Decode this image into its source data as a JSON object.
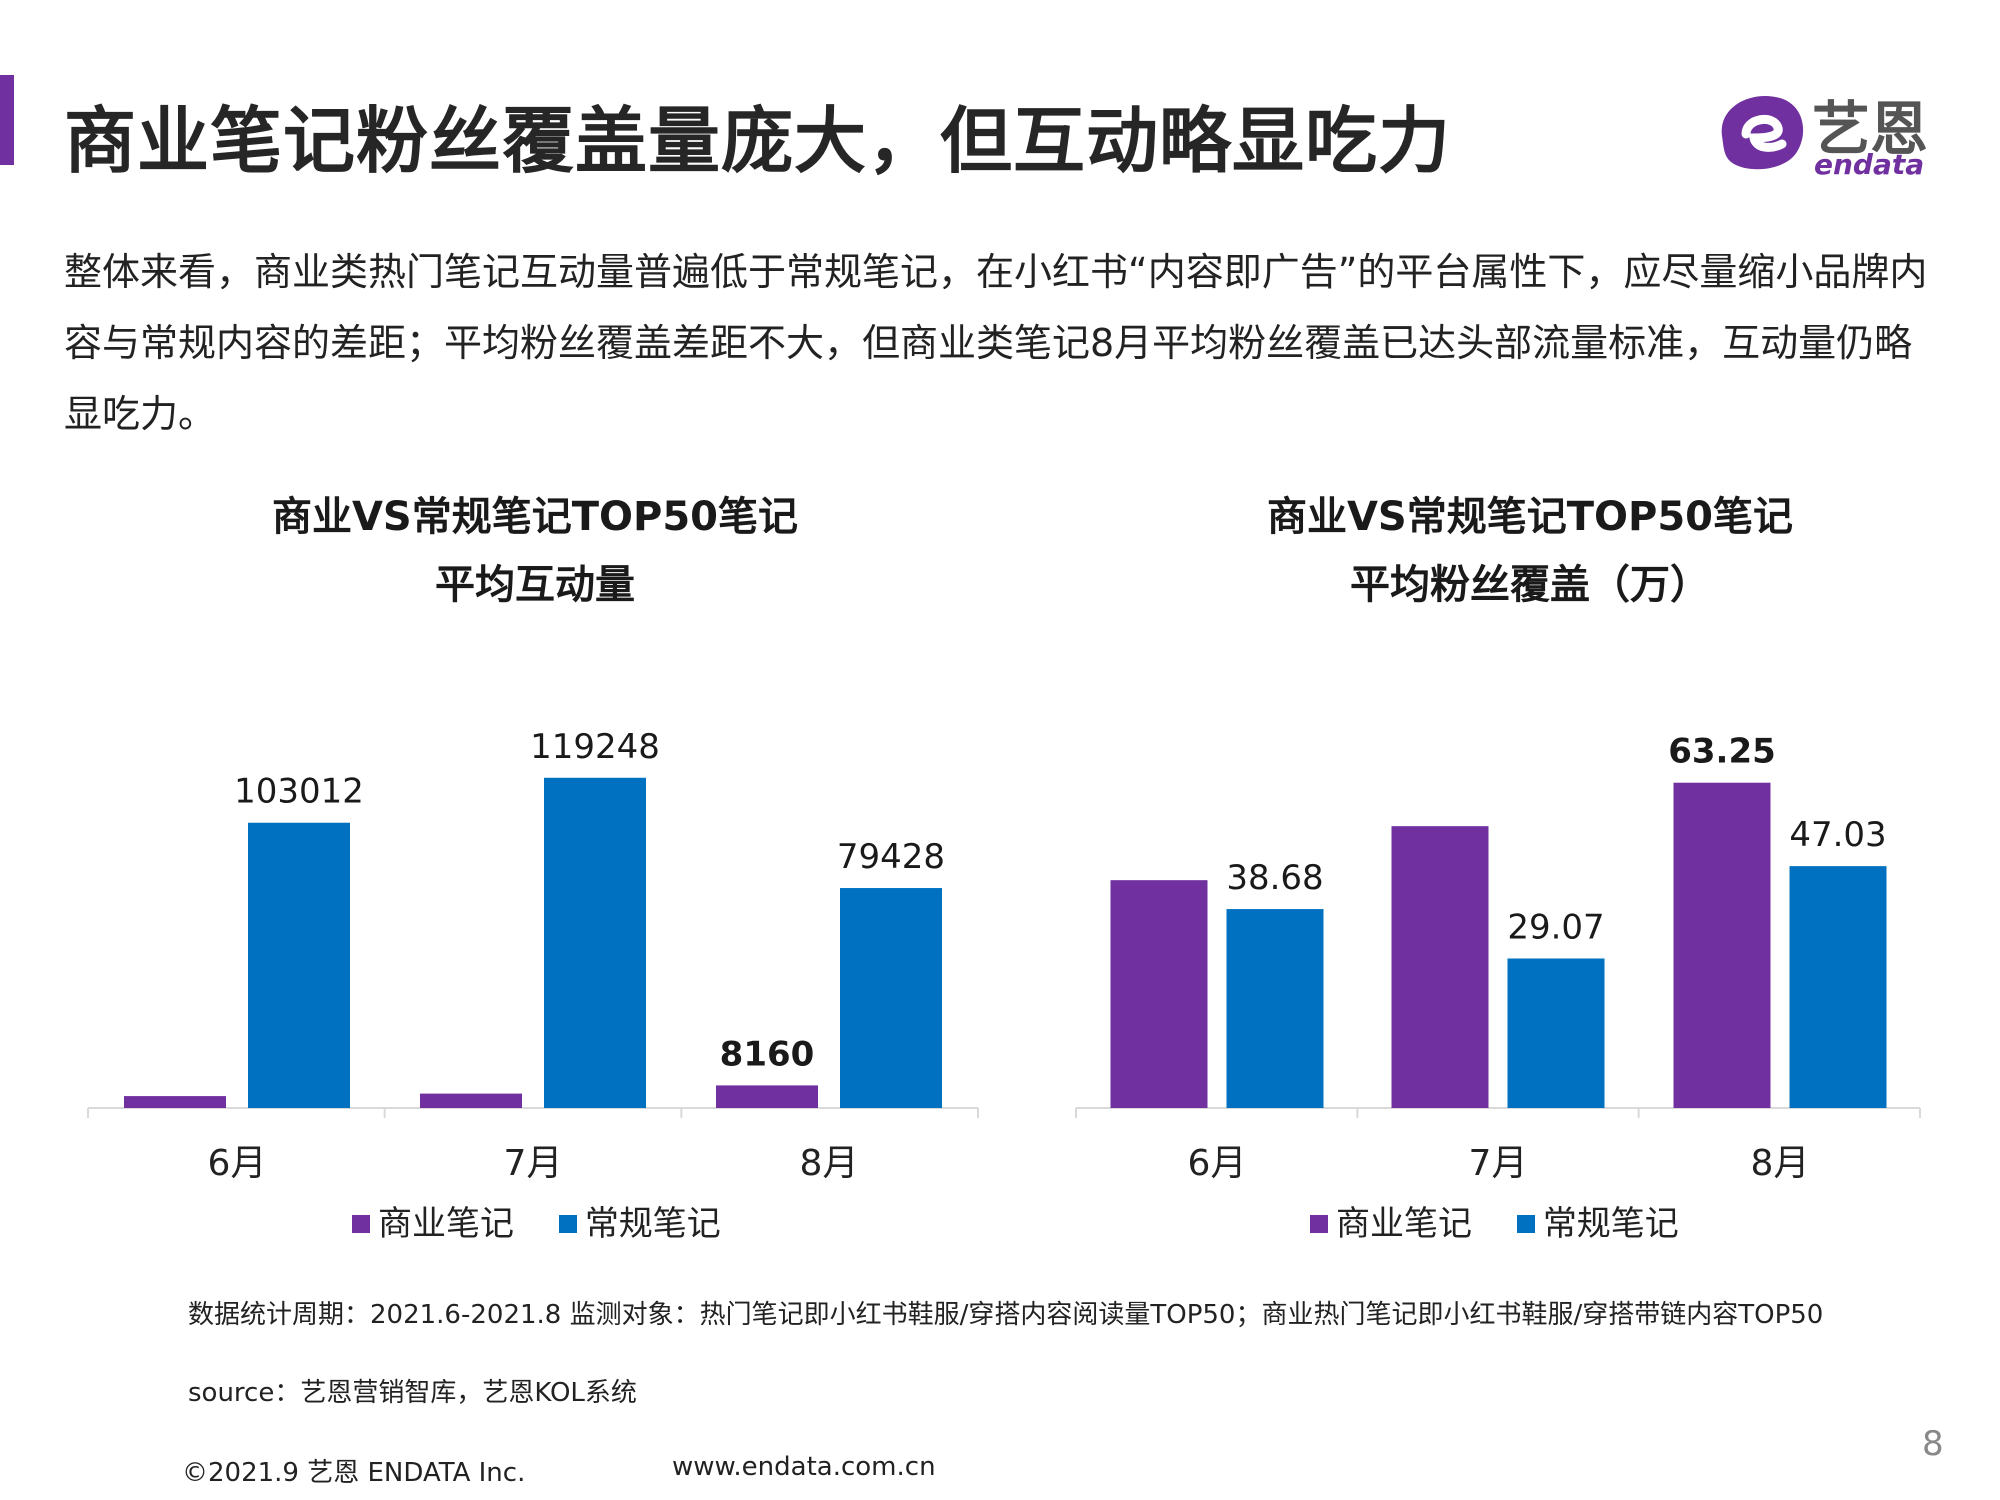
{
  "header": {
    "title": "商业笔记粉丝覆盖量庞大，但互动略显吃力",
    "accent_color": "#7030a0"
  },
  "logo": {
    "cn": "艺恩",
    "en": "endata"
  },
  "intro": {
    "text": "整体来看，商业类热门笔记互动量普遍低于常规笔记，在小红书“内容即广告”的平台属性下，应尽量缩小品牌内容与常规内容的差距；平均粉丝覆盖差距不大，但商业类笔记8月平均粉丝覆盖已达头部流量标准，互动量仍略显吃力。"
  },
  "chart_data": [
    {
      "id": "chart1",
      "type": "bar",
      "title_lines": [
        "商业VS常规笔记TOP50笔记",
        "平均互动量"
      ],
      "categories": [
        "6月",
        "7月",
        "8月"
      ],
      "series": [
        {
          "name": "商业笔记",
          "color": "#7030a0",
          "values": [
            4300,
            5200,
            8160
          ],
          "labels": [
            "",
            "",
            "8160"
          ],
          "bold": true
        },
        {
          "name": "常规笔记",
          "color": "#0070c0",
          "values": [
            103012,
            119248,
            79428
          ],
          "labels": [
            "103012",
            "119248",
            "79428"
          ],
          "bold": false
        }
      ],
      "ylim": [
        0,
        130000
      ],
      "grid": false,
      "legend_position": "bottom"
    },
    {
      "id": "chart2",
      "type": "bar",
      "title_lines": [
        "商业VS常规笔记TOP50笔记",
        "平均粉丝覆盖（万）"
      ],
      "categories": [
        "6月",
        "7月",
        "8月"
      ],
      "series": [
        {
          "name": "商业笔记",
          "color": "#7030a0",
          "values": [
            44.3,
            54.8,
            63.25
          ],
          "labels": [
            "",
            "",
            "63.25"
          ],
          "bold": true
        },
        {
          "name": "常规笔记",
          "color": "#0070c0",
          "values": [
            38.68,
            29.07,
            47.03
          ],
          "labels": [
            "38.68",
            "29.07",
            "47.03"
          ],
          "bold": false
        }
      ],
      "ylim": [
        0,
        70
      ],
      "grid": false,
      "legend_position": "bottom"
    }
  ],
  "notes": {
    "period": "数据统计周期：2021.6-2021.8     监测对象：热门笔记即小红书鞋服/穿搭内容阅读量TOP50；商业热门笔记即小红书鞋服/穿搭带链内容TOP50",
    "source": "source：艺恩营销智库，艺恩KOL系统"
  },
  "footer": {
    "copyright": "©2021.9 艺恩 ENDATA Inc.",
    "url": "www.endata.com.cn",
    "page_number": "8"
  }
}
